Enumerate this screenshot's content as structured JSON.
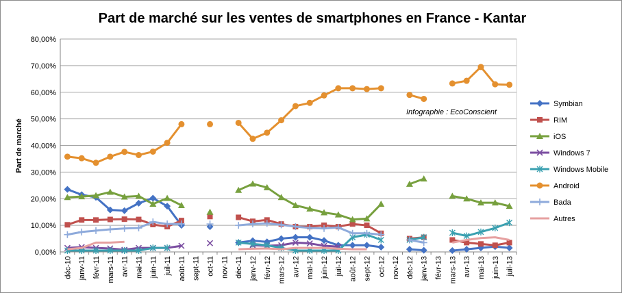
{
  "chart_data": {
    "type": "line",
    "title": "Part de marché sur les ventes de smartphones en France - Kantar",
    "xlabel": "",
    "ylabel": "Part de marché",
    "annotation": "Infographie : EcoConscient",
    "ylim": [
      0,
      80
    ],
    "y_ticks": [
      "0,00%",
      "10,00%",
      "20,00%",
      "30,00%",
      "40,00%",
      "50,00%",
      "60,00%",
      "70,00%",
      "80,00%"
    ],
    "grid": true,
    "legend_position": "right",
    "categories": [
      "déc-10",
      "janv-11",
      "févr-11",
      "mars-11",
      "avr-11",
      "mai-11",
      "juin-11",
      "juil-11",
      "août-11",
      "sept-11",
      "oct-11",
      "nov-11",
      "déc-11",
      "janv-12",
      "févr-12",
      "mars-12",
      "avr-12",
      "mai-12",
      "juin-12",
      "juil-12",
      "août-12",
      "sept-12",
      "oct-12",
      "nov-12",
      "déc-12",
      "janv-13",
      "févr-13",
      "mars-13",
      "avr-13",
      "mai-13",
      "juin-13",
      "juil-13"
    ],
    "series": [
      {
        "name": "Symbian",
        "color": "#4472c4",
        "marker": "diamond",
        "values": [
          23.5,
          21.5,
          20.5,
          15.8,
          15.5,
          18.3,
          20.2,
          17.2,
          10.0,
          null,
          9.5,
          null,
          3.5,
          4.2,
          3.8,
          5.0,
          5.5,
          5.5,
          4.3,
          2.5,
          2.5,
          2.5,
          1.8,
          null,
          1.0,
          0.6,
          null,
          0.5,
          1.0,
          1.5,
          2.0,
          1.5
        ]
      },
      {
        "name": "RIM",
        "color": "#c0504d",
        "marker": "square",
        "values": [
          10.2,
          12.0,
          12.0,
          12.2,
          12.3,
          12.2,
          10.3,
          9.5,
          11.8,
          null,
          13.3,
          null,
          13.0,
          11.5,
          12.0,
          10.5,
          9.5,
          9.5,
          10.0,
          9.5,
          10.5,
          10.0,
          7.0,
          null,
          5.0,
          5.5,
          null,
          4.5,
          3.5,
          3.0,
          2.5,
          3.5
        ]
      },
      {
        "name": "iOS",
        "color": "#77a03e",
        "marker": "triangle",
        "values": [
          20.5,
          20.8,
          21.2,
          22.5,
          20.7,
          21.0,
          18.0,
          20.2,
          17.5,
          null,
          15.0,
          null,
          23.2,
          25.6,
          24.2,
          20.5,
          17.5,
          16.2,
          14.8,
          14.0,
          12.2,
          12.5,
          18.0,
          null,
          25.5,
          27.5,
          null,
          21.0,
          20.0,
          18.5,
          18.5,
          17.2
        ]
      },
      {
        "name": "Windows 7",
        "color": "#7b4ea1",
        "marker": "x",
        "values": [
          1.5,
          1.8,
          1.5,
          1.3,
          0.8,
          1.5,
          1.5,
          1.5,
          2.3,
          null,
          3.3,
          null,
          null,
          2.5,
          2.3,
          2.5,
          3.5,
          3.2,
          2.3,
          2.0,
          null,
          null,
          null,
          null,
          null,
          null,
          null,
          null,
          null,
          null,
          null,
          null
        ]
      },
      {
        "name": "Windows Mobile",
        "color": "#3aa0b0",
        "marker": "star",
        "values": [
          0.5,
          0.5,
          0.5,
          0.5,
          0.5,
          0.5,
          1.5,
          1.5,
          null,
          null,
          null,
          null,
          3.5,
          3.0,
          2.5,
          1.5,
          0.5,
          0.5,
          0.5,
          0.5,
          5.5,
          6.5,
          4.5,
          null,
          4.5,
          5.5,
          null,
          7.2,
          6.0,
          7.5,
          9.0,
          11.0
        ]
      },
      {
        "name": "Android",
        "color": "#e4902f",
        "marker": "circle",
        "values": [
          35.8,
          35.2,
          33.5,
          35.8,
          37.6,
          36.4,
          37.7,
          41.0,
          48.0,
          null,
          48.0,
          null,
          48.5,
          42.5,
          44.8,
          49.5,
          54.8,
          56.0,
          58.8,
          61.5,
          61.5,
          61.2,
          61.5,
          null,
          59.0,
          57.5,
          null,
          63.3,
          64.3,
          69.5,
          63.0,
          62.8
        ]
      },
      {
        "name": "Bada",
        "color": "#8eaadb",
        "marker": "plus",
        "values": [
          6.5,
          7.5,
          8.0,
          8.5,
          8.8,
          9.0,
          11.3,
          10.5,
          10.5,
          null,
          10.5,
          null,
          10.0,
          10.5,
          10.7,
          10.2,
          9.5,
          9.0,
          8.8,
          9.2,
          7.0,
          7.0,
          6.5,
          null,
          4.5,
          3.5,
          null,
          null,
          null,
          null,
          null,
          null
        ]
      },
      {
        "name": "Autres",
        "color": "#e6a0a0",
        "marker": "none",
        "values": [
          1.0,
          1.5,
          3.5,
          3.5,
          3.8,
          null,
          null,
          null,
          null,
          null,
          null,
          null,
          1.0,
          1.2,
          1.3,
          1.0,
          1.5,
          1.5,
          1.5,
          1.2,
          1.0,
          1.0,
          null,
          null,
          null,
          null,
          null,
          3.5,
          4.5,
          5.2,
          5.5,
          4.5
        ]
      }
    ]
  }
}
